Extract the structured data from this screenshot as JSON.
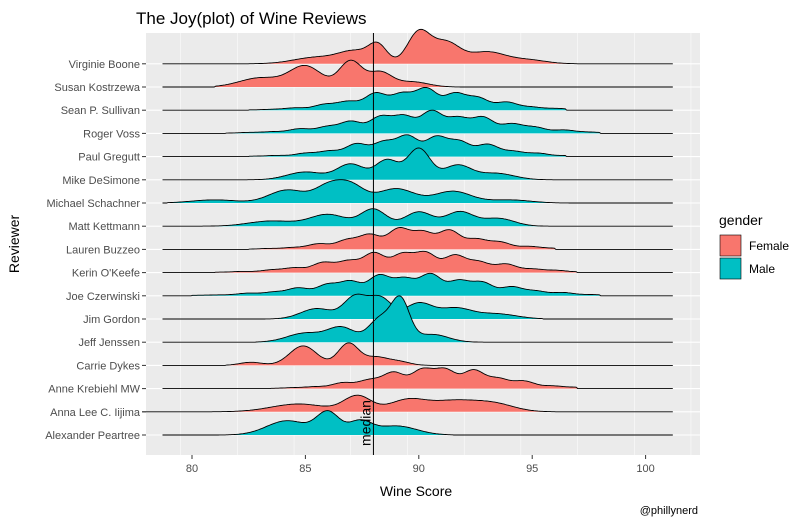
{
  "chart_data": {
    "type": "ridgeline",
    "title": "The Joy(plot) of Wine Reviews",
    "xlabel": "Wine Score",
    "ylabel": "Reviewer",
    "xlim": [
      77.5,
      102.3
    ],
    "xticks": [
      80,
      85,
      90,
      95,
      100
    ],
    "grid": true,
    "median": 88,
    "median_label": "median",
    "caption": "@phillynerd",
    "legend": {
      "title": "gender",
      "placement": "right",
      "items": [
        {
          "name": "Female",
          "color": "#F8766D"
        },
        {
          "name": "Male",
          "color": "#00BFC4"
        }
      ]
    },
    "series": [
      {
        "name": "Alexander Peartree",
        "gender": "Male",
        "range": [
          78.7,
          101.2
        ],
        "fill": [
          81,
          91.5
        ],
        "peaks": [
          [
            84.2,
            0.55,
            0.9
          ],
          [
            86,
            0.85,
            0.5
          ],
          [
            87.4,
            0.5,
            0.5
          ],
          [
            89,
            0.35,
            0.9
          ]
        ]
      },
      {
        "name": "Anna Lee C. Iijima",
        "gender": "Female",
        "range": [
          77.8,
          101.2
        ],
        "fill": [
          80,
          96
        ],
        "peaks": [
          [
            84.7,
            0.3,
            1.2
          ],
          [
            87.3,
            0.6,
            0.6
          ],
          [
            89.5,
            0.45,
            0.8
          ],
          [
            91.5,
            0.4,
            1.0
          ],
          [
            93.3,
            0.3,
            0.9
          ]
        ]
      },
      {
        "name": "Anne Krebiehl MW",
        "gender": "Female",
        "range": [
          78.7,
          101.2
        ],
        "fill": [
          83.5,
          97
        ]
      },
      {
        "name": "Carrie Dykes",
        "gender": "Female",
        "range": [
          78.7,
          101.2
        ],
        "fill": [
          81.5,
          90.5
        ],
        "peaks": [
          [
            82.6,
            0.12,
            0.5
          ],
          [
            84.9,
            0.75,
            0.6
          ],
          [
            86.9,
            0.85,
            0.45
          ],
          [
            88.1,
            0.3,
            0.5
          ],
          [
            89.1,
            0.15,
            0.5
          ]
        ]
      },
      {
        "name": "Jeff Jenssen",
        "gender": "Male",
        "range": [
          78.7,
          101.2
        ],
        "fill": [
          82.8,
          93
        ],
        "peaks": [
          [
            85,
            0.35,
            0.8
          ],
          [
            86.6,
            0.55,
            0.6
          ],
          [
            88.3,
            0.9,
            0.5
          ],
          [
            89.2,
            1.55,
            0.4
          ],
          [
            90.6,
            0.3,
            0.7
          ]
        ]
      },
      {
        "name": "Jim Gordon",
        "gender": "Male",
        "range": [
          78.7,
          101.2
        ],
        "fill": [
          83,
          95.5
        ],
        "peaks": [
          [
            85.5,
            0.4,
            0.7
          ],
          [
            87.2,
            0.85,
            0.5
          ],
          [
            88.3,
            0.8,
            0.5
          ],
          [
            90,
            0.6,
            0.6
          ],
          [
            91.6,
            0.4,
            0.7
          ],
          [
            93.4,
            0.2,
            0.9
          ]
        ]
      },
      {
        "name": "Joe Czerwinski",
        "gender": "Male",
        "range": [
          78.7,
          101.2
        ],
        "fill": [
          80,
          98
        ]
      },
      {
        "name": "Kerin O'Keefe",
        "gender": "Female",
        "range": [
          78.7,
          101.2
        ],
        "fill": [
          81,
          97
        ]
      },
      {
        "name": "Lauren Buzzeo",
        "gender": "Female",
        "range": [
          78.7,
          101.2
        ],
        "fill": [
          82.5,
          96
        ]
      },
      {
        "name": "Matt Kettmann",
        "gender": "Male",
        "range": [
          78.7,
          101.2
        ],
        "fill": [
          80,
          97.5
        ],
        "peaks": [
          [
            83.5,
            0.2,
            1.0
          ],
          [
            86,
            0.45,
            0.8
          ],
          [
            88,
            0.65,
            0.55
          ],
          [
            90,
            0.55,
            0.6
          ],
          [
            91.8,
            0.55,
            0.6
          ],
          [
            93.5,
            0.3,
            0.7
          ]
        ]
      },
      {
        "name": "Michael Schachner",
        "gender": "Male",
        "range": [
          78.7,
          101.2
        ],
        "fill": [
          78.9,
          97.5
        ],
        "peaks": [
          [
            81,
            0.12,
            1.0
          ],
          [
            84.2,
            0.5,
            0.8
          ],
          [
            86,
            0.6,
            0.6
          ],
          [
            87,
            0.65,
            0.6
          ],
          [
            89,
            0.55,
            0.8
          ],
          [
            91.5,
            0.45,
            0.8
          ],
          [
            94,
            0.12,
            0.9
          ]
        ]
      },
      {
        "name": "Mike DeSimone",
        "gender": "Male",
        "range": [
          78.7,
          101.2
        ],
        "fill": [
          82,
          97
        ],
        "peaks": [
          [
            85,
            0.3,
            0.8
          ],
          [
            87,
            0.6,
            0.6
          ],
          [
            88.6,
            0.75,
            0.5
          ],
          [
            90,
            1.2,
            0.5
          ],
          [
            91.7,
            0.55,
            0.6
          ],
          [
            93.4,
            0.25,
            0.8
          ]
        ]
      },
      {
        "name": "Paul Gregutt",
        "gender": "Male",
        "range": [
          78.7,
          101.2
        ],
        "fill": [
          82.5,
          96.5
        ]
      },
      {
        "name": "Roger Voss",
        "gender": "Male",
        "range": [
          78.7,
          101.2
        ],
        "fill": [
          81.5,
          98
        ]
      },
      {
        "name": "Sean P. Sullivan",
        "gender": "Male",
        "range": [
          78.7,
          101.2
        ],
        "fill": [
          82.5,
          96.5
        ]
      },
      {
        "name": "Susan Kostrzewa",
        "gender": "Female",
        "range": [
          78.7,
          101.2
        ],
        "fill": [
          81,
          92.5
        ],
        "peaks": [
          [
            83,
            0.35,
            0.9
          ],
          [
            85,
            0.8,
            0.7
          ],
          [
            87,
            1.0,
            0.5
          ],
          [
            88.3,
            0.55,
            0.5
          ],
          [
            89.7,
            0.2,
            0.7
          ]
        ]
      },
      {
        "name": "Virginie Boone",
        "gender": "Female",
        "range": [
          78.7,
          101.2
        ],
        "fill": [
          82.5,
          97
        ],
        "peaks": [
          [
            85.5,
            0.25,
            1.0
          ],
          [
            87.2,
            0.45,
            0.7
          ],
          [
            88.2,
            0.65,
            0.4
          ],
          [
            90,
            1.2,
            0.5
          ],
          [
            91.2,
            0.8,
            0.6
          ],
          [
            93,
            0.45,
            0.8
          ],
          [
            94.8,
            0.15,
            0.8
          ]
        ]
      }
    ]
  }
}
